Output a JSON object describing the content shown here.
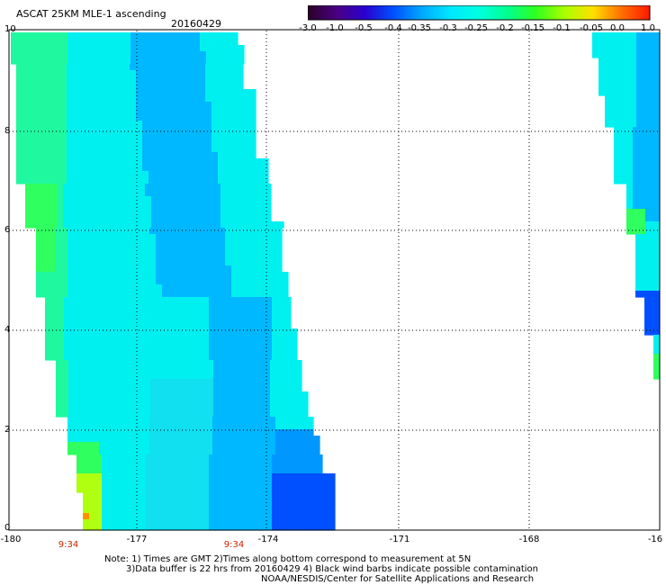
{
  "header": {
    "title": "ASCAT 25KM MLE-1 ascending",
    "date": "20160429"
  },
  "colorbar": {
    "tick_labels": [
      "-3.0",
      "-1.0",
      "-0.5",
      "-0.4",
      "-0.35",
      "-0.3",
      "-0.25",
      "-0.2",
      "-0.15",
      "-0.1",
      "-0.05",
      "0.0",
      "1.0"
    ],
    "colors": [
      "#2a0028",
      "#4a0080",
      "#2a00d0",
      "#0050ff",
      "#00a8ff",
      "#00e8ff",
      "#00ffe0",
      "#00ff90",
      "#30ff20",
      "#a8ff00",
      "#ffe000",
      "#ff7000",
      "#ff1800"
    ]
  },
  "map": {
    "lat_labels": [
      "10",
      "8",
      "6",
      "4",
      "2",
      "0"
    ],
    "lon_labels": [
      "-180",
      "-177",
      "-174",
      "-171",
      "-168",
      "-16"
    ],
    "time_labels": [
      "9:34",
      "9:34"
    ],
    "colors": {
      "swath_base": "#00f0f0",
      "green": "#30ff60",
      "blue": "#00b8ff",
      "deep_blue": "#0050ff",
      "yellow_green": "#b0ff10",
      "orange": "#ff9000"
    }
  },
  "footer": {
    "line1": "Note: 1) Times are GMT 2)Times along bottom correspond to measurement at 5N",
    "line2": "3)Data buffer is 22 hrs from 20160429 4) Black wind barbs indicate possible contamination",
    "line3": "NOAA/NESDIS/Center for Satellite Applications and Research"
  }
}
